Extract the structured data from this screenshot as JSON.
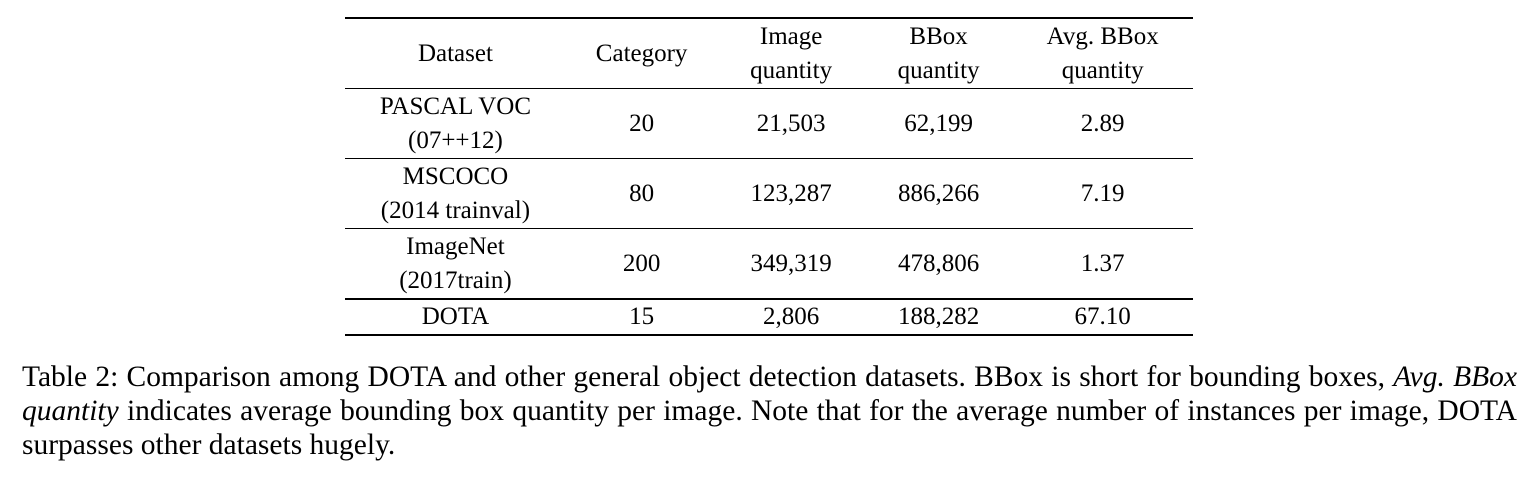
{
  "table": {
    "headers": [
      {
        "line1": "Dataset",
        "line2": ""
      },
      {
        "line1": "Category",
        "line2": ""
      },
      {
        "line1": "Image",
        "line2": "quantity"
      },
      {
        "line1": "BBox",
        "line2": "quantity"
      },
      {
        "line1": "Avg. BBox",
        "line2": "quantity"
      }
    ],
    "rows": [
      {
        "dataset": "PASCAL VOC",
        "dataset_sub": "(07++12)",
        "category": "20",
        "image_quantity": "21,503",
        "bbox_quantity": "62,199",
        "avg_bbox_quantity": "2.89"
      },
      {
        "dataset": "MSCOCO",
        "dataset_sub": "(2014 trainval)",
        "category": "80",
        "image_quantity": "123,287",
        "bbox_quantity": "886,266",
        "avg_bbox_quantity": "7.19"
      },
      {
        "dataset": "ImageNet",
        "dataset_sub": "(2017train)",
        "category": "200",
        "image_quantity": "349,319",
        "bbox_quantity": "478,806",
        "avg_bbox_quantity": "1.37"
      },
      {
        "dataset": "DOTA",
        "dataset_sub": "",
        "category": "15",
        "image_quantity": "2,806",
        "bbox_quantity": "188,282",
        "avg_bbox_quantity": "67.10"
      }
    ]
  },
  "caption": {
    "part1": "Table 2: Comparison among DOTA and other general object detection datasets.  BBox is short for bounding boxes, ",
    "italic": "Avg.  BBox quantity",
    "part2": " indicates average bounding box quantity per image. Note that for the average number of instances per image, DOTA surpasses other datasets hugely."
  },
  "chart_data": {
    "type": "table",
    "title": "Table 2: Comparison among DOTA and other general object detection datasets",
    "columns": [
      "Dataset",
      "Category",
      "Image quantity",
      "BBox quantity",
      "Avg. BBox quantity"
    ],
    "rows": [
      [
        "PASCAL VOC (07++12)",
        20,
        21503,
        62199,
        2.89
      ],
      [
        "MSCOCO (2014 trainval)",
        80,
        123287,
        886266,
        7.19
      ],
      [
        "ImageNet (2017train)",
        200,
        349319,
        478806,
        1.37
      ],
      [
        "DOTA",
        15,
        2806,
        188282,
        67.1
      ]
    ]
  }
}
